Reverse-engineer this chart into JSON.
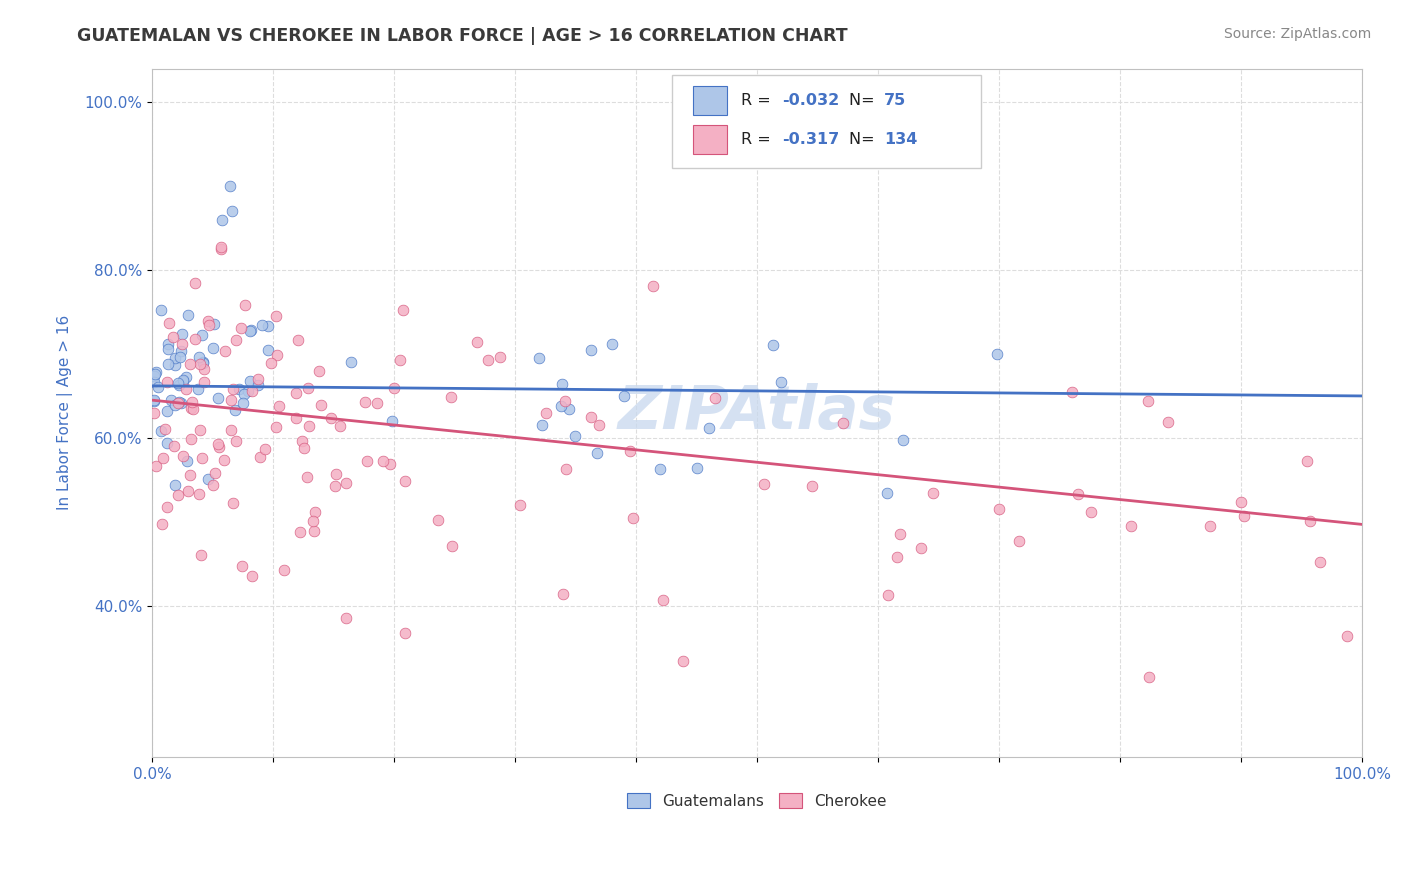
{
  "title": "GUATEMALAN VS CHEROKEE IN LABOR FORCE | AGE > 16 CORRELATION CHART",
  "source": "Source: ZipAtlas.com",
  "ylabel": "In Labor Force | Age > 16",
  "x_min": 0.0,
  "x_max": 1.0,
  "y_min": 0.22,
  "y_max": 1.04,
  "legend_r_guatemalan": "-0.032",
  "legend_n_guatemalan": "75",
  "legend_r_cherokee": "-0.317",
  "legend_n_cherokee": "134",
  "color_guatemalan_fill": "#aec6e8",
  "color_guatemalan_edge": "#4472c4",
  "color_cherokee_fill": "#f4b0c4",
  "color_cherokee_edge": "#d4547a",
  "color_line_guatemalan": "#4472c4",
  "color_line_cherokee": "#d4547a",
  "color_legend_value": "#4472c4",
  "background_color": "#ffffff",
  "title_color": "#3a3a3a",
  "source_color": "#888888",
  "axis_label_color": "#4472c4",
  "tick_color": "#4472c4",
  "grid_color": "#dddddd",
  "watermark_color": "#c8d8ee"
}
